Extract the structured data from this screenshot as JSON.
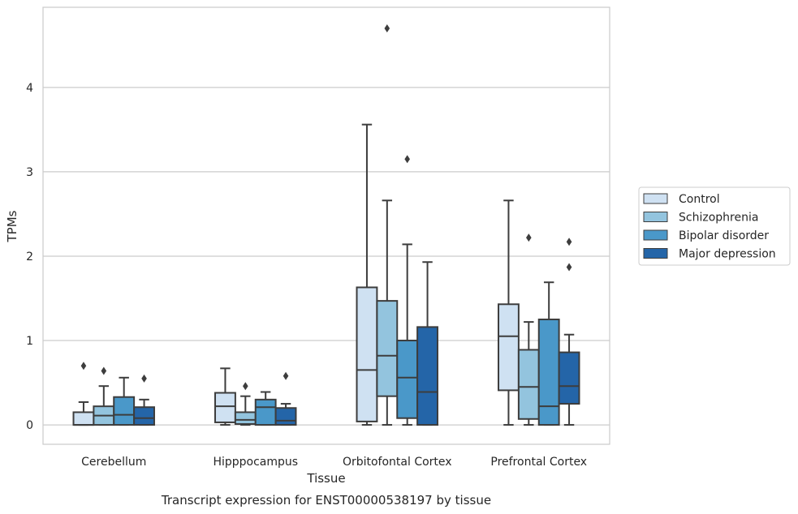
{
  "chart_data": {
    "type": "box",
    "title": "",
    "caption": "Transcript expression for ENST00000538197 by tissue",
    "xlabel": "Tissue",
    "ylabel": "TPMs",
    "ylim": [
      -0.23,
      4.95
    ],
    "yticks": [
      0,
      1,
      2,
      3,
      4
    ],
    "grid": "horizontal",
    "legend_position": "right",
    "categories": [
      "Cerebellum",
      "Hipppocampus",
      "Orbitofontal Cortex",
      "Prefrontal Cortex"
    ],
    "series": [
      {
        "name": "Control",
        "color": "#cfe1f2",
        "boxes": [
          {
            "whislo": 0,
            "q1": 0,
            "med": 0.0,
            "q3": 0.15,
            "whishi": 0.27,
            "fliers": [
              0.7
            ]
          },
          {
            "whislo": 0,
            "q1": 0.03,
            "med": 0.22,
            "q3": 0.38,
            "whishi": 0.67,
            "fliers": []
          },
          {
            "whislo": 0,
            "q1": 0.04,
            "med": 0.65,
            "q3": 1.63,
            "whishi": 3.56,
            "fliers": []
          },
          {
            "whislo": 0,
            "q1": 0.41,
            "med": 1.05,
            "q3": 1.43,
            "whishi": 2.66,
            "fliers": []
          }
        ]
      },
      {
        "name": "Schizophrenia",
        "color": "#93c4de",
        "boxes": [
          {
            "whislo": 0,
            "q1": 0,
            "med": 0.11,
            "q3": 0.22,
            "whishi": 0.46,
            "fliers": [
              0.64
            ]
          },
          {
            "whislo": 0,
            "q1": 0.01,
            "med": 0.06,
            "q3": 0.15,
            "whishi": 0.34,
            "fliers": [
              0.46
            ]
          },
          {
            "whislo": 0,
            "q1": 0.34,
            "med": 0.82,
            "q3": 1.47,
            "whishi": 2.66,
            "fliers": [
              4.7
            ]
          },
          {
            "whislo": 0,
            "q1": 0.07,
            "med": 0.45,
            "q3": 0.89,
            "whishi": 1.22,
            "fliers": [
              2.22
            ]
          }
        ]
      },
      {
        "name": "Bipolar disorder",
        "color": "#4a98c9",
        "boxes": [
          {
            "whislo": 0,
            "q1": 0,
            "med": 0.12,
            "q3": 0.33,
            "whishi": 0.56,
            "fliers": []
          },
          {
            "whislo": 0,
            "q1": 0,
            "med": 0.21,
            "q3": 0.3,
            "whishi": 0.39,
            "fliers": []
          },
          {
            "whislo": 0,
            "q1": 0.08,
            "med": 0.56,
            "q3": 1.0,
            "whishi": 2.14,
            "fliers": [
              3.15
            ]
          },
          {
            "whislo": 0,
            "q1": 0,
            "med": 0.22,
            "q3": 1.25,
            "whishi": 1.69,
            "fliers": []
          }
        ]
      },
      {
        "name": "Major depression",
        "color": "#2465a8",
        "boxes": [
          {
            "whislo": 0,
            "q1": 0,
            "med": 0.08,
            "q3": 0.21,
            "whishi": 0.3,
            "fliers": [
              0.55
            ]
          },
          {
            "whislo": 0,
            "q1": 0,
            "med": 0.05,
            "q3": 0.2,
            "whishi": 0.25,
            "fliers": [
              0.58
            ]
          },
          {
            "whislo": 0,
            "q1": 0,
            "med": 0.39,
            "q3": 1.16,
            "whishi": 1.93,
            "fliers": []
          },
          {
            "whislo": 0,
            "q1": 0.25,
            "med": 0.46,
            "q3": 0.86,
            "whishi": 1.07,
            "fliers": [
              1.87,
              2.17
            ]
          }
        ]
      }
    ]
  }
}
